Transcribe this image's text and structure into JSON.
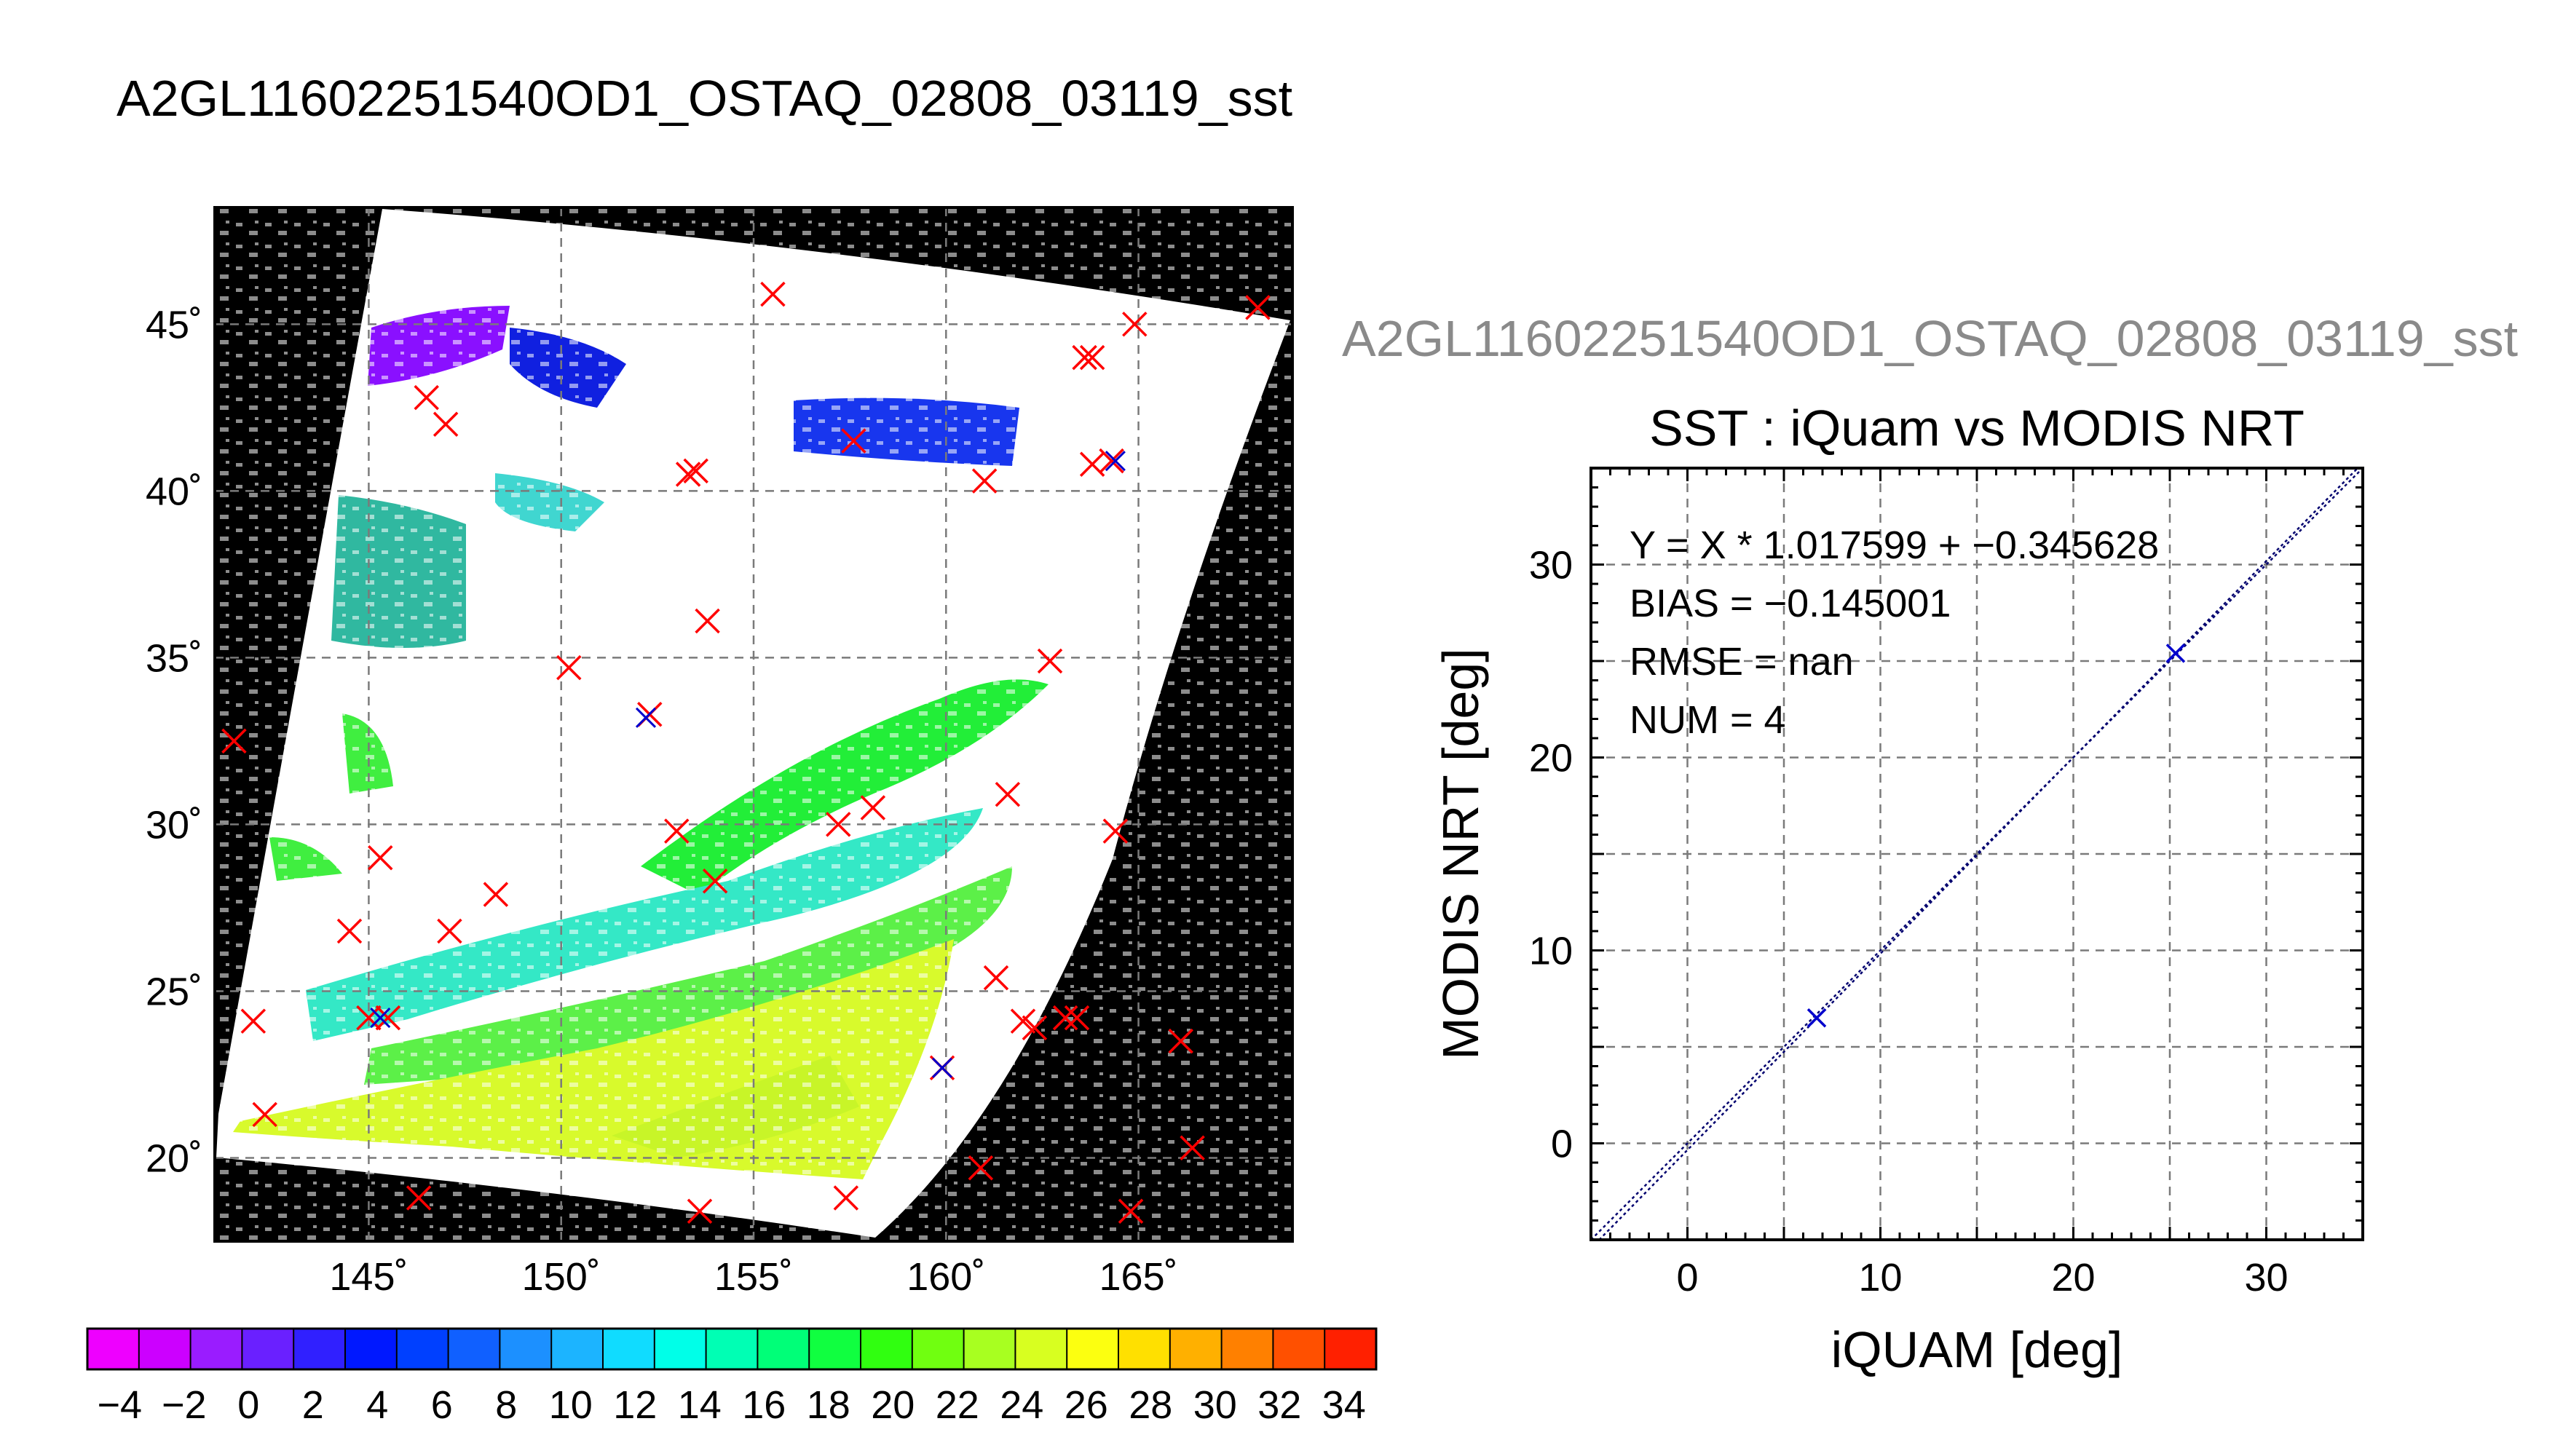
{
  "main_title": "A2GL11602251540OD1_OSTAQ_02808_03119_sst",
  "ghost_title": "A2GL11602251540OD1_OSTAQ_02808_03119_sst",
  "colors": {
    "land_background": "#000000",
    "marker_red": "#ff0000",
    "marker_blue": "#0000cc",
    "regression_line": "#00006e",
    "grid": "#7a7a7a"
  },
  "chart_data": [
    {
      "type": "heatmap",
      "title": "",
      "description_of_fill": "sea surface temperature swath over NW Pacific",
      "xlim": [
        141,
        169
      ],
      "ylim": [
        17.5,
        48.5
      ],
      "x_ticks": [
        145,
        150,
        155,
        160,
        165
      ],
      "y_ticks": [
        20,
        25,
        30,
        35,
        40,
        45
      ],
      "x_tick_labels": [
        "145˚",
        "150˚",
        "155˚",
        "160˚",
        "165˚"
      ],
      "y_tick_labels": [
        "20˚",
        "25˚",
        "30˚",
        "35˚",
        "40˚",
        "45˚"
      ],
      "grid": true,
      "colorbar": {
        "range": [
          -5,
          35
        ],
        "tick_labels": [
          "−4",
          "−2",
          "0",
          "2",
          "4",
          "6",
          "8",
          "10",
          "12",
          "14",
          "16",
          "18",
          "20",
          "22",
          "24",
          "26",
          "28",
          "30",
          "32",
          "34"
        ],
        "tick_values": [
          -4,
          -2,
          0,
          2,
          4,
          6,
          8,
          10,
          12,
          14,
          16,
          18,
          20,
          22,
          24,
          26,
          28,
          30,
          32,
          34
        ],
        "colors": [
          "#ee00ff",
          "#cc00ff",
          "#9a1cff",
          "#6a20ff",
          "#3020ff",
          "#0018ff",
          "#0040ff",
          "#1060ff",
          "#1c90ff",
          "#1cb4ff",
          "#10dcff",
          "#00ffe8",
          "#00ffb4",
          "#00ff78",
          "#10ff40",
          "#30ff10",
          "#70ff10",
          "#a8ff20",
          "#d8ff20",
          "#fcff10",
          "#ffe000",
          "#ffb000",
          "#ff8000",
          "#ff5000",
          "#ff2000"
        ]
      },
      "markers_red": [
        [
          141.5,
          32.5
        ],
        [
          142.0,
          24.1
        ],
        [
          142.3,
          21.3
        ],
        [
          144.5,
          26.8
        ],
        [
          145.0,
          24.2
        ],
        [
          145.3,
          29.0
        ],
        [
          145.5,
          24.2
        ],
        [
          146.3,
          18.8
        ],
        [
          146.5,
          42.8
        ],
        [
          147.0,
          42.0
        ],
        [
          147.1,
          26.8
        ],
        [
          148.3,
          27.9
        ],
        [
          150.2,
          34.7
        ],
        [
          152.3,
          33.3
        ],
        [
          153.0,
          29.8
        ],
        [
          153.3,
          40.5
        ],
        [
          153.5,
          40.6
        ],
        [
          153.6,
          18.4
        ],
        [
          153.8,
          36.1
        ],
        [
          154.0,
          28.3
        ],
        [
          155.5,
          45.9
        ],
        [
          157.2,
          30.0
        ],
        [
          157.4,
          18.8
        ],
        [
          157.6,
          41.5
        ],
        [
          158.1,
          30.5
        ],
        [
          159.9,
          22.7
        ],
        [
          160.9,
          19.7
        ],
        [
          161.0,
          40.3
        ],
        [
          161.3,
          25.4
        ],
        [
          161.6,
          30.9
        ],
        [
          162.0,
          24.1
        ],
        [
          162.3,
          23.9
        ],
        [
          162.7,
          34.9
        ],
        [
          163.1,
          24.2
        ],
        [
          163.4,
          24.2
        ],
        [
          163.6,
          44.0
        ],
        [
          163.8,
          44.0
        ],
        [
          163.8,
          40.8
        ],
        [
          164.3,
          40.9
        ],
        [
          164.4,
          29.8
        ],
        [
          164.8,
          18.4
        ],
        [
          164.9,
          45.0
        ],
        [
          166.1,
          23.5
        ],
        [
          166.4,
          20.3
        ],
        [
          168.1,
          45.5
        ]
      ],
      "markers_blue": [
        [
          164.4,
          40.9
        ],
        [
          159.9,
          22.7
        ],
        [
          145.3,
          24.2
        ],
        [
          152.2,
          33.2
        ]
      ]
    },
    {
      "type": "scatter",
      "title": "SST : iQuam vs MODIS NRT",
      "xlabel": "iQUAM [deg]",
      "ylabel": "MODIS NRT [deg]",
      "xlim": [
        -5,
        35
      ],
      "ylim": [
        -5,
        35
      ],
      "x_ticks": [
        0,
        10,
        20,
        30
      ],
      "y_ticks": [
        0,
        10,
        20,
        30
      ],
      "x_tick_labels": [
        "0",
        "10",
        "20",
        "30"
      ],
      "y_tick_labels": [
        "0",
        "10",
        "20",
        "30"
      ],
      "grid": true,
      "points": [
        [
          6.7,
          6.5
        ],
        [
          25.3,
          25.4
        ]
      ],
      "regression": {
        "slope": 1.017599,
        "intercept": -0.345628
      },
      "identity_line": true,
      "stats": [
        "Y = X * 1.017599 + −0.345628",
        "BIAS = −0.145001",
        "RMSE = nan",
        "NUM = 4"
      ]
    }
  ]
}
